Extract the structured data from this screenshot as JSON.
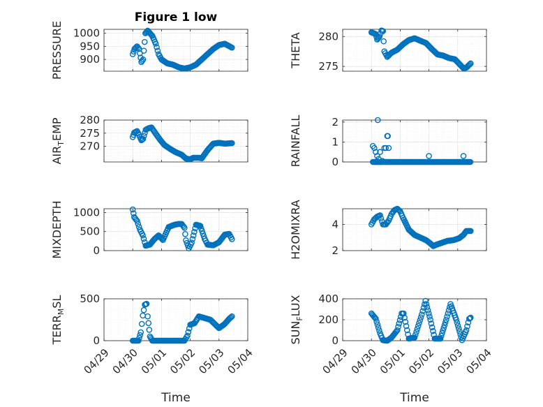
{
  "chart_data": [
    {
      "type": "scatter",
      "title": "Figure 1 low",
      "ylabel": "PRESSURE",
      "xlabel": "",
      "ylim": [
        855,
        1015
      ],
      "yticks": [
        900,
        950,
        1000
      ],
      "xlim": [
        0,
        5
      ],
      "grid": true,
      "anchors": [
        [
          1.0,
          920
        ],
        [
          1.06,
          940
        ],
        [
          1.15,
          950
        ],
        [
          1.22,
          940
        ],
        [
          1.3,
          890
        ],
        [
          1.36,
          900
        ],
        [
          1.44,
          1000
        ],
        [
          1.52,
          1010
        ],
        [
          1.6,
          1000
        ],
        [
          1.68,
          990
        ],
        [
          1.8,
          960
        ],
        [
          1.9,
          920
        ],
        [
          2.0,
          900
        ],
        [
          2.2,
          885
        ],
        [
          2.4,
          880
        ],
        [
          2.6,
          870
        ],
        [
          2.8,
          865
        ],
        [
          3.0,
          870
        ],
        [
          3.2,
          880
        ],
        [
          3.4,
          900
        ],
        [
          3.6,
          920
        ],
        [
          3.8,
          940
        ],
        [
          4.0,
          955
        ],
        [
          4.2,
          960
        ],
        [
          4.45,
          945
        ]
      ]
    },
    {
      "type": "scatter",
      "title": "",
      "ylabel": "THETA",
      "xlabel": "",
      "ylim": [
        274.2,
        281.2
      ],
      "yticks": [
        275,
        280
      ],
      "xlim": [
        0,
        5
      ],
      "grid": true,
      "anchors": [
        [
          1.0,
          280.7
        ],
        [
          1.15,
          280.4
        ],
        [
          1.2,
          279.5
        ],
        [
          1.28,
          280.0
        ],
        [
          1.35,
          281.0
        ],
        [
          1.4,
          280.9
        ],
        [
          1.45,
          277.5
        ],
        [
          1.55,
          276.6
        ],
        [
          1.7,
          277.3
        ],
        [
          1.9,
          277.8
        ],
        [
          2.1,
          278.7
        ],
        [
          2.3,
          279.4
        ],
        [
          2.5,
          279.7
        ],
        [
          2.7,
          279.3
        ],
        [
          2.9,
          278.9
        ],
        [
          3.1,
          277.9
        ],
        [
          3.3,
          277.0
        ],
        [
          3.5,
          276.8
        ],
        [
          3.7,
          276.4
        ],
        [
          3.9,
          276.2
        ],
        [
          4.1,
          275.2
        ],
        [
          4.2,
          274.7
        ],
        [
          4.3,
          274.8
        ],
        [
          4.45,
          275.5
        ]
      ]
    },
    {
      "type": "scatter",
      "title": "",
      "ylabel": "AIR_T_EMP",
      "ylabel_main": "AIR",
      "ylabel_sub": "T",
      "ylabel_rest": "EMP",
      "xlabel": "",
      "ylim": [
        264,
        280
      ],
      "yticks": [
        270,
        275,
        280
      ],
      "xlim": [
        0,
        5
      ],
      "grid": true,
      "anchors": [
        [
          1.0,
          273.5
        ],
        [
          1.05,
          275.2
        ],
        [
          1.15,
          275.8
        ],
        [
          1.22,
          274.3
        ],
        [
          1.3,
          272.3
        ],
        [
          1.36,
          272.8
        ],
        [
          1.45,
          276.3
        ],
        [
          1.55,
          276.9
        ],
        [
          1.65,
          277.2
        ],
        [
          1.8,
          274.8
        ],
        [
          1.95,
          272.5
        ],
        [
          2.1,
          270.5
        ],
        [
          2.3,
          269.0
        ],
        [
          2.5,
          267.7
        ],
        [
          2.7,
          266.8
        ],
        [
          2.85,
          265.3
        ],
        [
          3.0,
          265.0
        ],
        [
          3.1,
          265.6
        ],
        [
          3.3,
          265.6
        ],
        [
          3.4,
          265.4
        ],
        [
          3.6,
          268.5
        ],
        [
          3.8,
          271.0
        ],
        [
          4.0,
          271.3
        ],
        [
          4.2,
          271.0
        ],
        [
          4.45,
          271.2
        ]
      ]
    },
    {
      "type": "scatter",
      "title": "",
      "ylabel": "RAINFALL",
      "xlabel": "",
      "ylim": [
        0,
        2.1
      ],
      "yticks": [
        0,
        1,
        2
      ],
      "xlim": [
        0,
        5
      ],
      "grid": true,
      "points": [
        [
          1.05,
          0.8
        ],
        [
          1.1,
          0.7
        ],
        [
          1.15,
          0.5
        ],
        [
          1.13,
          0.0
        ],
        [
          1.2,
          0.0
        ],
        [
          1.2,
          0.3
        ],
        [
          1.22,
          2.1
        ],
        [
          1.25,
          0.15
        ],
        [
          1.3,
          0.5
        ],
        [
          1.3,
          0.0
        ],
        [
          1.35,
          0.0
        ],
        [
          1.38,
          0.05
        ],
        [
          1.45,
          0.7
        ],
        [
          1.5,
          0.7
        ],
        [
          1.52,
          0.0
        ],
        [
          1.55,
          1.3
        ],
        [
          1.57,
          1.3
        ],
        [
          1.6,
          0.0
        ],
        [
          1.6,
          0.7
        ],
        [
          3.0,
          0.3
        ],
        [
          4.2,
          0.3
        ]
      ],
      "baseline": {
        "from": 1.05,
        "to": 4.45,
        "value": 0
      }
    },
    {
      "type": "scatter",
      "title": "",
      "ylabel": "MIXDEPTH",
      "xlabel": "",
      "ylim": [
        0,
        1100
      ],
      "yticks": [
        0,
        500,
        1000
      ],
      "xlim": [
        0,
        5
      ],
      "grid": true,
      "anchors": [
        [
          1.0,
          1080
        ],
        [
          1.05,
          880
        ],
        [
          1.15,
          780
        ],
        [
          1.25,
          550
        ],
        [
          1.35,
          400
        ],
        [
          1.45,
          130
        ],
        [
          1.6,
          160
        ],
        [
          1.75,
          300
        ],
        [
          1.9,
          400
        ],
        [
          2.05,
          280
        ],
        [
          2.25,
          620
        ],
        [
          2.45,
          680
        ],
        [
          2.6,
          700
        ],
        [
          2.7,
          700
        ],
        [
          2.8,
          600
        ],
        [
          2.85,
          270
        ],
        [
          2.95,
          60
        ],
        [
          3.05,
          210
        ],
        [
          3.2,
          680
        ],
        [
          3.35,
          650
        ],
        [
          3.5,
          310
        ],
        [
          3.6,
          160
        ],
        [
          3.8,
          140
        ],
        [
          4.0,
          220
        ],
        [
          4.2,
          420
        ],
        [
          4.35,
          440
        ],
        [
          4.45,
          300
        ]
      ]
    },
    {
      "type": "scatter",
      "title": "",
      "ylabel": "H2OMIXRA",
      "xlabel": "",
      "ylim": [
        2,
        5.2
      ],
      "yticks": [
        2,
        4
      ],
      "xlim": [
        0,
        5
      ],
      "grid": true,
      "anchors": [
        [
          1.0,
          4.0
        ],
        [
          1.1,
          4.4
        ],
        [
          1.2,
          4.6
        ],
        [
          1.3,
          4.7
        ],
        [
          1.4,
          4.0
        ],
        [
          1.5,
          4.0
        ],
        [
          1.6,
          4.3
        ],
        [
          1.7,
          4.8
        ],
        [
          1.8,
          5.1
        ],
        [
          1.9,
          5.2
        ],
        [
          2.0,
          5.0
        ],
        [
          2.1,
          4.5
        ],
        [
          2.3,
          3.6
        ],
        [
          2.5,
          3.2
        ],
        [
          2.7,
          3.0
        ],
        [
          2.9,
          2.8
        ],
        [
          3.05,
          2.55
        ],
        [
          3.15,
          2.35
        ],
        [
          3.25,
          2.45
        ],
        [
          3.45,
          2.6
        ],
        [
          3.65,
          2.75
        ],
        [
          3.85,
          2.8
        ],
        [
          4.05,
          2.95
        ],
        [
          4.2,
          3.2
        ],
        [
          4.3,
          3.5
        ],
        [
          4.45,
          3.5
        ]
      ]
    },
    {
      "type": "scatter",
      "title": "",
      "ylabel": "TERR_M_SL",
      "ylabel_main": "TERR",
      "ylabel_sub": "M",
      "ylabel_rest": "SL",
      "xlabel": "Time",
      "ylim": [
        0,
        500
      ],
      "yticks": [
        0,
        500
      ],
      "xlim": [
        0,
        5
      ],
      "xticks": [
        "04/29",
        "04/30",
        "05/01",
        "05/02",
        "05/03",
        "05/04"
      ],
      "grid": true,
      "anchors": [
        [
          1.0,
          0
        ],
        [
          1.2,
          0
        ],
        [
          1.28,
          100
        ],
        [
          1.35,
          300
        ],
        [
          1.42,
          430
        ],
        [
          1.48,
          440
        ],
        [
          1.52,
          290
        ],
        [
          1.6,
          50
        ],
        [
          1.68,
          0
        ],
        [
          2.0,
          0
        ],
        [
          2.4,
          0
        ],
        [
          2.8,
          0
        ],
        [
          2.9,
          60
        ],
        [
          3.0,
          190
        ],
        [
          3.15,
          210
        ],
        [
          3.3,
          290
        ],
        [
          3.5,
          270
        ],
        [
          3.7,
          250
        ],
        [
          3.85,
          200
        ],
        [
          4.0,
          150
        ],
        [
          4.2,
          200
        ],
        [
          4.35,
          260
        ],
        [
          4.45,
          290
        ]
      ]
    },
    {
      "type": "scatter",
      "title": "",
      "ylabel": "SUN_F_LUX",
      "ylabel_main": "SUN",
      "ylabel_sub": "F",
      "ylabel_rest": "LUX",
      "xlabel": "Time",
      "ylim": [
        0,
        400
      ],
      "yticks": [
        0,
        200,
        400
      ],
      "xlim": [
        0,
        5
      ],
      "xticks": [
        "04/29",
        "04/30",
        "05/01",
        "05/02",
        "05/03",
        "05/04"
      ],
      "grid": true,
      "anchors": [
        [
          1.0,
          260
        ],
        [
          1.15,
          210
        ],
        [
          1.3,
          70
        ],
        [
          1.4,
          5
        ],
        [
          1.55,
          0
        ],
        [
          1.7,
          30
        ],
        [
          1.9,
          100
        ],
        [
          2.05,
          260
        ],
        [
          2.12,
          260
        ],
        [
          2.3,
          20
        ],
        [
          2.5,
          30
        ],
        [
          2.75,
          250
        ],
        [
          2.88,
          380
        ],
        [
          3.05,
          200
        ],
        [
          3.2,
          20
        ],
        [
          3.4,
          20
        ],
        [
          3.6,
          200
        ],
        [
          3.75,
          350
        ],
        [
          3.95,
          200
        ],
        [
          4.15,
          5
        ],
        [
          4.3,
          100
        ],
        [
          4.4,
          210
        ],
        [
          4.45,
          220
        ]
      ]
    }
  ]
}
